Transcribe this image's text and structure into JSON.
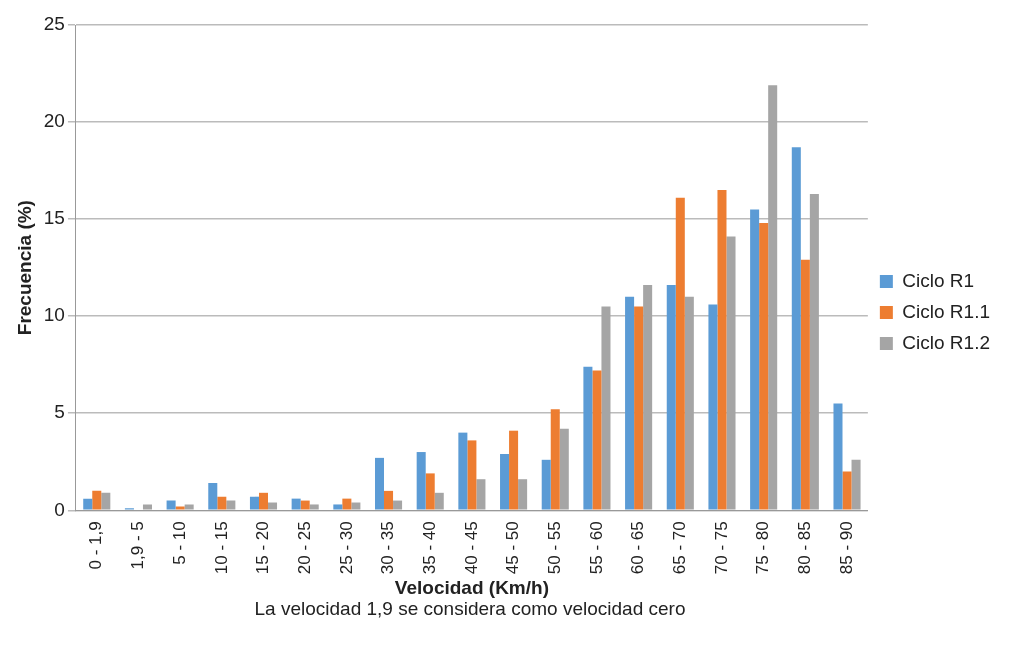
{
  "chart_data": {
    "type": "bar",
    "xlabel": "Velocidad (Km/h)",
    "ylabel": "Frecuencia (%)",
    "annotations": [
      "La velocidad 1,9 se considera como velocidad cero"
    ],
    "categories": [
      "0 - 1,9",
      "1,9 - 5",
      "5 - 10",
      "10 - 15",
      "15 - 20",
      "20 - 25",
      "25 - 30",
      "30 - 35",
      "35 - 40",
      "40 - 45",
      "45 - 50",
      "50 - 55",
      "55 - 60",
      "60 - 65",
      "65 - 70",
      "70 - 75",
      "75 - 80",
      "80 - 85",
      "85 - 90"
    ],
    "series": [
      {
        "name": "Ciclo R1",
        "color": "#5b9bd5",
        "values": [
          0.6,
          0.1,
          0.5,
          1.4,
          0.7,
          0.6,
          0.3,
          2.7,
          3.0,
          4.0,
          2.9,
          2.6,
          7.4,
          11.0,
          11.6,
          10.6,
          15.5,
          18.7,
          5.5
        ]
      },
      {
        "name": "Ciclo R1.1",
        "color": "#ed7d31",
        "values": [
          1.0,
          0,
          0.2,
          0.7,
          0.9,
          0.5,
          0.6,
          1.0,
          1.9,
          3.6,
          4.1,
          5.2,
          7.2,
          10.5,
          16.1,
          16.5,
          14.8,
          12.9,
          2.0
        ]
      },
      {
        "name": "Ciclo R1.2",
        "color": "#a5a5a5",
        "values": [
          0.9,
          0.3,
          0.3,
          0.5,
          0.4,
          0.3,
          0.4,
          0.5,
          0.9,
          1.6,
          1.6,
          4.2,
          10.5,
          11.6,
          11.0,
          14.1,
          21.9,
          16.3,
          2.6
        ]
      }
    ],
    "ylim": [
      0,
      25
    ],
    "yticks": [
      0,
      5,
      10,
      15,
      20,
      25
    ],
    "grid": "y",
    "legend": "right"
  }
}
